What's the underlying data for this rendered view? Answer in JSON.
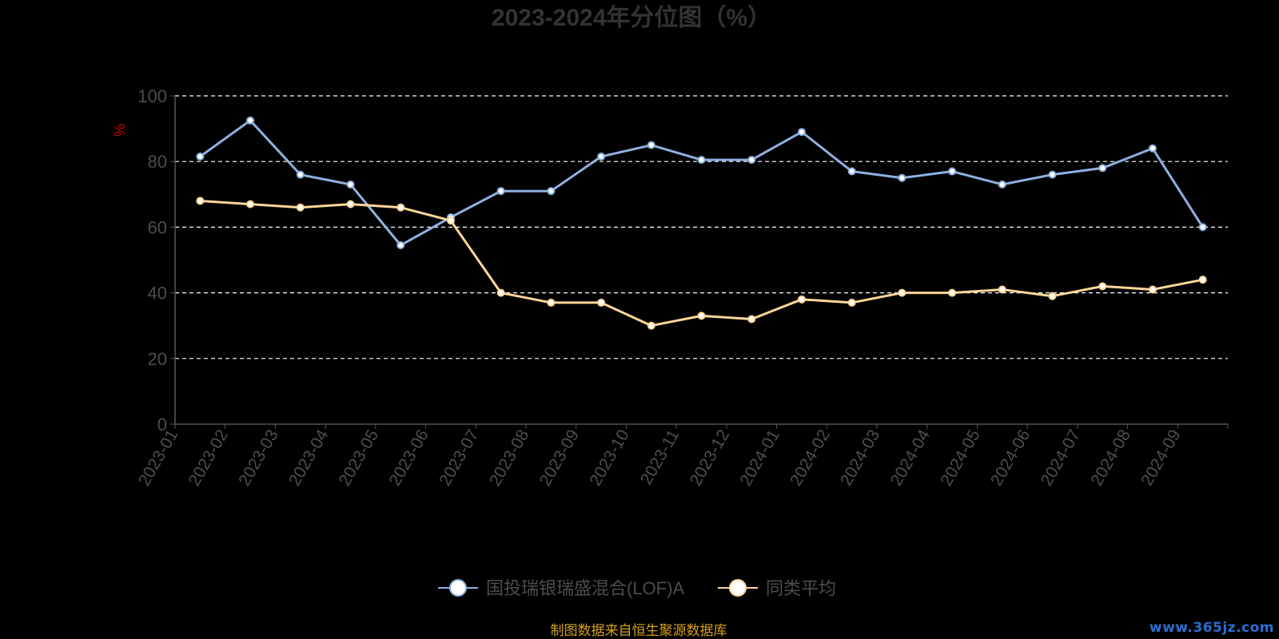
{
  "chart_data": {
    "type": "line",
    "title": "2023-2024年分位图（%）",
    "ylabel": "%",
    "xlabel": "",
    "ylim": [
      0,
      100
    ],
    "yticks": [
      0,
      20,
      40,
      60,
      80,
      100
    ],
    "grid": true,
    "legend_position": "bottom-center",
    "categories": [
      "2023-01",
      "2023-02",
      "2023-03",
      "2023-04",
      "2023-05",
      "2023-06",
      "2023-07",
      "2023-08",
      "2023-09",
      "2023-10",
      "2023-11",
      "2023-12",
      "2024-01",
      "2024-02",
      "2024-03",
      "2024-04",
      "2024-05",
      "2024-06",
      "2024-07",
      "2024-08",
      "2024-09"
    ],
    "series": [
      {
        "name": "国投瑞银瑞盛混合(LOF)A",
        "color": "#8fb0e0",
        "values": [
          81.5,
          92.5,
          76,
          73,
          54.5,
          63,
          71,
          71,
          81.5,
          85,
          80.5,
          80.5,
          89,
          77,
          75,
          77,
          73,
          76,
          78,
          84,
          60
        ]
      },
      {
        "name": "同类平均",
        "color": "#ffd699",
        "values": [
          68,
          67,
          66,
          67,
          66,
          62,
          40,
          37,
          37,
          30,
          33,
          32,
          38,
          37,
          40,
          40,
          41,
          39,
          42,
          41,
          44
        ]
      }
    ]
  },
  "footer": {
    "source_text": "制图数据来自恒生聚源数据库",
    "source_color": "#d4a017",
    "watermark": "www.365jz.com"
  },
  "colors": {
    "background": "#000000",
    "axis_text": "#4d4d4d",
    "title_text": "#333333",
    "ylabel_text": "#cc0000",
    "grid": "#ffffff"
  }
}
